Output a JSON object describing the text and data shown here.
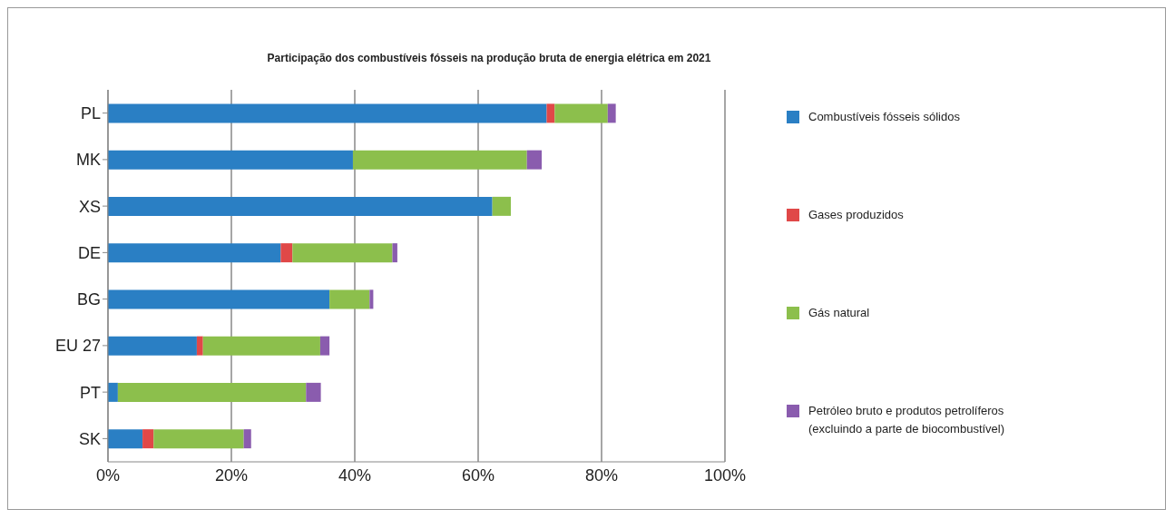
{
  "chart_data": {
    "type": "bar",
    "orientation": "horizontal",
    "stacked": true,
    "title": "Participação dos combustíveis fósseis na produção bruta de energia elétrica em 2021",
    "categories": [
      "PL",
      "MK",
      "XS",
      "DE",
      "BG",
      "EU 27",
      "PT",
      "SK"
    ],
    "series": [
      {
        "name": "Combustíveis fósseis sólidos",
        "color": "#2a7fc4",
        "values": [
          71.1,
          39.7,
          62.3,
          28.0,
          35.9,
          14.4,
          1.6,
          5.6
        ]
      },
      {
        "name": "Gases produzidos",
        "color": "#e04848",
        "values": [
          1.3,
          0,
          0,
          1.9,
          0,
          1.0,
          0,
          1.8
        ]
      },
      {
        "name": "Gás natural",
        "color": "#8cbf4c",
        "values": [
          8.6,
          28.2,
          3.0,
          16.2,
          6.5,
          19.0,
          30.5,
          14.6
        ]
      },
      {
        "name": "Petróleo bruto e produtos petrolíferos (excluindo a parte de biocombustível)",
        "color": "#8a5cae",
        "values": [
          1.3,
          2.4,
          0,
          0.8,
          0.6,
          1.5,
          2.4,
          1.2
        ]
      }
    ],
    "xlim": [
      0,
      100
    ],
    "xticks": [
      {
        "value": 0,
        "label": "0%"
      },
      {
        "value": 20,
        "label": "20%"
      },
      {
        "value": 40,
        "label": "40%"
      },
      {
        "value": 60,
        "label": "60%"
      },
      {
        "value": 80,
        "label": "80%"
      },
      {
        "value": 100,
        "label": "100%"
      }
    ],
    "grid": "x",
    "legend": "right"
  }
}
